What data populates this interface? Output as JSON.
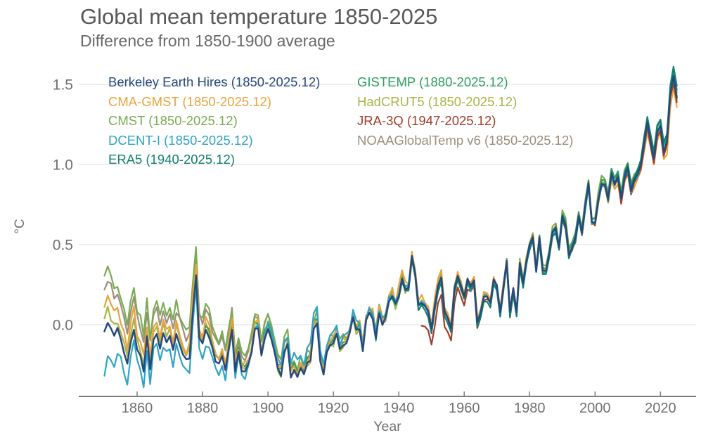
{
  "header": {
    "title": "Global mean temperature 1850-2025",
    "subtitle": "Difference from 1850-1900 average"
  },
  "colors": {
    "title_text": "#57585a",
    "subtitle_text": "#69696b",
    "axis_text": "#6f7072",
    "axis_line": "#7f7f7f",
    "gridline": "#e4e4e4",
    "background": "#ffffff"
  },
  "chart_data": {
    "type": "line",
    "title": "Global mean temperature 1850-2025",
    "subtitle": "Difference from 1850-1900 average",
    "xlabel": "Year",
    "ylabel": "°C",
    "x_range": [
      1850,
      2025
    ],
    "ylim": [
      -0.45,
      1.65
    ],
    "grid": "horizontal-only",
    "legend_position": "top-left inside plot, two columns, colored text labels",
    "x_ticks": [
      {
        "year": 1860,
        "label": "1860"
      },
      {
        "year": 1880,
        "label": "1880"
      },
      {
        "year": 1900,
        "label": "1900"
      },
      {
        "year": 1920,
        "label": "1920"
      },
      {
        "year": 1940,
        "label": "1940"
      },
      {
        "year": 1960,
        "label": "1960"
      },
      {
        "year": 1980,
        "label": "1980"
      },
      {
        "year": 2000,
        "label": "2000"
      },
      {
        "year": 2020,
        "label": "2020"
      }
    ],
    "y_ticks": [
      {
        "value": 0.0,
        "label": "0.0"
      },
      {
        "value": 0.5,
        "label": "0.5"
      },
      {
        "value": 1.0,
        "label": "1.0"
      },
      {
        "value": 1.5,
        "label": "1.5"
      }
    ],
    "years_start": 1850,
    "years_end": 2025,
    "base_values": [
      -0.05,
      0.02,
      -0.02,
      -0.06,
      -0.03,
      -0.1,
      -0.18,
      -0.25,
      -0.12,
      -0.02,
      -0.15,
      -0.2,
      -0.3,
      -0.08,
      -0.28,
      -0.1,
      -0.05,
      -0.15,
      -0.05,
      -0.12,
      -0.08,
      -0.16,
      -0.05,
      -0.12,
      -0.18,
      -0.22,
      -0.2,
      0.08,
      0.32,
      -0.08,
      -0.12,
      -0.03,
      -0.08,
      -0.15,
      -0.22,
      -0.24,
      -0.2,
      -0.28,
      -0.14,
      -0.02,
      -0.28,
      -0.18,
      -0.28,
      -0.3,
      -0.25,
      -0.18,
      -0.02,
      -0.02,
      -0.2,
      -0.08,
      -0.02,
      -0.08,
      -0.18,
      -0.28,
      -0.32,
      -0.18,
      -0.12,
      -0.32,
      -0.28,
      -0.32,
      -0.28,
      -0.32,
      -0.24,
      -0.22,
      -0.02,
      0.02,
      -0.22,
      -0.32,
      -0.18,
      -0.12,
      -0.12,
      -0.06,
      -0.16,
      -0.12,
      -0.12,
      -0.06,
      0.04,
      -0.04,
      -0.02,
      -0.16,
      0.02,
      0.08,
      0.04,
      -0.08,
      0.08,
      0.0,
      0.04,
      0.14,
      0.18,
      0.12,
      0.18,
      0.28,
      0.22,
      0.24,
      0.44,
      0.32,
      0.12,
      0.14,
      0.12,
      0.08,
      -0.02,
      0.12,
      0.24,
      0.3,
      0.08,
      0.04,
      -0.02,
      0.22,
      0.3,
      0.24,
      0.18,
      0.28,
      0.24,
      0.28,
      0.02,
      0.08,
      0.18,
      0.18,
      0.14,
      0.28,
      0.24,
      0.08,
      0.24,
      0.4,
      0.08,
      0.22,
      0.08,
      0.38,
      0.26,
      0.4,
      0.5,
      0.54,
      0.34,
      0.54,
      0.34,
      0.34,
      0.44,
      0.58,
      0.6,
      0.48,
      0.68,
      0.62,
      0.44,
      0.48,
      0.54,
      0.68,
      0.58,
      0.74,
      0.88,
      0.64,
      0.64,
      0.78,
      0.88,
      0.88,
      0.78,
      0.94,
      0.88,
      0.92,
      0.78,
      0.92,
      0.98,
      0.84,
      0.9,
      0.94,
      1.0,
      1.14,
      1.26,
      1.14,
      1.04,
      1.2,
      1.24,
      1.08,
      1.14,
      1.44,
      1.55,
      1.42
    ],
    "offset_years": [
      1850,
      1855,
      1865,
      1880,
      1910,
      1940,
      1970,
      2000,
      2025
    ],
    "series": [
      {
        "name": "berkeley",
        "label": "Berkeley Earth Hires (1850-2025.12)",
        "color": "#28497C",
        "start_year": 1850,
        "end_year": 2025,
        "offsets": [
          0,
          0,
          0,
          0,
          0,
          0,
          0,
          0,
          0
        ],
        "jitter": 0.012,
        "seed": 1
      },
      {
        "name": "cma_gmst",
        "label": "CMA-GMST (1850-2025.12)",
        "color": "#E8A33D",
        "start_year": 1850,
        "end_year": 2025,
        "offsets": [
          0.18,
          0.12,
          0.08,
          0.06,
          0.02,
          0.04,
          0.01,
          -0.01,
          -0.07
        ],
        "jitter": 0.035,
        "seed": 2
      },
      {
        "name": "cmst",
        "label": "CMST (1850-2025.12)",
        "color": "#79AC51",
        "start_year": 1850,
        "end_year": 2025,
        "offsets": [
          0.35,
          0.28,
          0.2,
          0.16,
          0.06,
          0.02,
          0.01,
          0.04,
          0.03
        ],
        "jitter": 0.03,
        "seed": 3
      },
      {
        "name": "dcent",
        "label": "DCENT-I (1850-2025.12)",
        "color": "#2FA3C7",
        "start_year": 1850,
        "end_year": 2025,
        "offsets": [
          -0.26,
          -0.12,
          -0.06,
          -0.1,
          0.09,
          0.0,
          -0.02,
          -0.01,
          0.0
        ],
        "jitter": 0.03,
        "seed": 4
      },
      {
        "name": "era5",
        "label": "ERA5 (1940-2025.12)",
        "color": "#12806B",
        "start_year": 1940,
        "end_year": 2025,
        "offsets": [
          0,
          0,
          0,
          0,
          0,
          -0.02,
          -0.03,
          -0.01,
          0.06
        ],
        "jitter": 0.02,
        "seed": 5
      },
      {
        "name": "gistemp",
        "label": "GISTEMP (1880-2025.12)",
        "color": "#2F9E5F",
        "start_year": 1880,
        "end_year": 2025,
        "offsets": [
          0,
          0,
          0,
          0.04,
          0.02,
          0.0,
          0.0,
          0.02,
          0.04
        ],
        "jitter": 0.025,
        "seed": 6
      },
      {
        "name": "hadcrut5",
        "label": "HadCRUT5 (1850-2025.12)",
        "color": "#A9B646",
        "start_year": 1850,
        "end_year": 2025,
        "offsets": [
          0.08,
          0.05,
          0.04,
          0.03,
          0.0,
          0.0,
          0.0,
          0.0,
          0.0
        ],
        "jitter": 0.025,
        "seed": 7
      },
      {
        "name": "jra3q",
        "label": "JRA-3Q (1947-2025.12)",
        "color": "#A23D2B",
        "start_year": 1947,
        "end_year": 2025,
        "offsets": [
          0,
          0,
          0,
          0,
          0,
          -0.18,
          0.0,
          -0.01,
          -0.03
        ],
        "jitter": 0.03,
        "seed": 8
      },
      {
        "name": "noaa",
        "label": "NOAAGlobalTemp v6 (1850-2025.12)",
        "color": "#9C8E7D",
        "start_year": 1850,
        "end_year": 2025,
        "offsets": [
          0.28,
          0.22,
          0.16,
          0.13,
          0.04,
          0.0,
          0.0,
          -0.01,
          -0.02
        ],
        "jitter": 0.025,
        "seed": 9
      }
    ],
    "draw_order": [
      "noaa",
      "hadcrut5",
      "cmst",
      "gistemp",
      "cma_gmst",
      "jra3q",
      "dcent",
      "era5",
      "berkeley"
    ],
    "legend_columns": [
      [
        "berkeley",
        "cma_gmst",
        "cmst",
        "dcent",
        "era5"
      ],
      [
        "gistemp",
        "hadcrut5",
        "jra3q",
        "noaa"
      ]
    ]
  }
}
